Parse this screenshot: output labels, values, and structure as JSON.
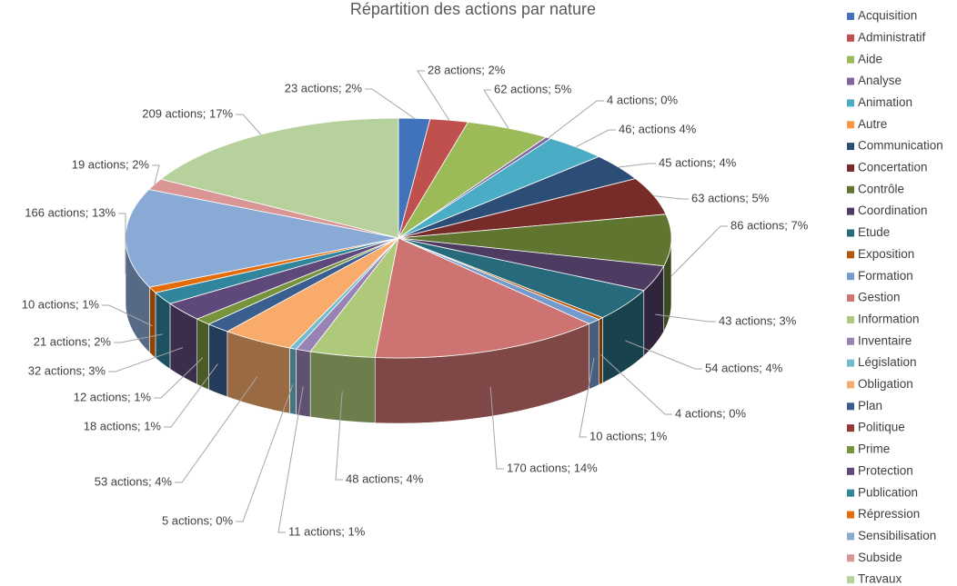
{
  "chart_data": {
    "type": "pie3d",
    "title": "Répartition des actions par nature",
    "categories": [
      "Acquisition",
      "Administratif",
      "Aide",
      "Analyse",
      "Animation",
      "Autre",
      "Communication",
      "Concertation",
      "Contrôle",
      "Coordination",
      "Etude",
      "Exposition",
      "Formation",
      "Gestion",
      "Information",
      "Inventaire",
      "Législation",
      "Obligation",
      "Plan",
      "Politique",
      "Prime",
      "Protection",
      "Publication",
      "Répression",
      "Sensibilisation",
      "Subside",
      "Travaux"
    ],
    "values": [
      23,
      28,
      62,
      4,
      46,
      0,
      45,
      63,
      86,
      43,
      54,
      4,
      10,
      170,
      48,
      11,
      5,
      53,
      18,
      0,
      12,
      32,
      21,
      10,
      166,
      19,
      209
    ],
    "value_labels": [
      "23 actions; 2%",
      "28 actions; 2%",
      "62 actions; 5%",
      "4 actions; 0%",
      "46; actions 4%",
      null,
      "45 actions; 4%",
      "63 actions; 5%",
      "86 actions; 7%",
      "43 actions; 3%",
      "54 actions; 4%",
      "4 actions; 0%",
      "10 actions; 1%",
      "170 actions; 14%",
      "48 actions; 4%",
      "11 actions; 1%",
      "5 actions; 0%",
      "53 actions; 4%",
      "18 actions; 1%",
      null,
      "12 actions; 1%",
      "32 actions; 3%",
      "21 actions; 2%",
      "10 actions; 1%",
      "166 actions; 13%",
      "19 actions; 2%",
      "209 actions; 17%"
    ],
    "colors": [
      "#4073b9",
      "#c0504d",
      "#9bbb59",
      "#8064a2",
      "#4bacc6",
      "#f79646",
      "#2c4d75",
      "#772c2a",
      "#5f7530",
      "#4d3b62",
      "#276a7c",
      "#b65708",
      "#729aca",
      "#cd7371",
      "#afc97a",
      "#9983b5",
      "#6fbdd1",
      "#f9ab6b",
      "#3a5f8f",
      "#953735",
      "#77933c",
      "#5f497a",
      "#31859c",
      "#e46c0a",
      "#8aaad6",
      "#d99694",
      "#b7d19d"
    ],
    "legend": "right"
  }
}
